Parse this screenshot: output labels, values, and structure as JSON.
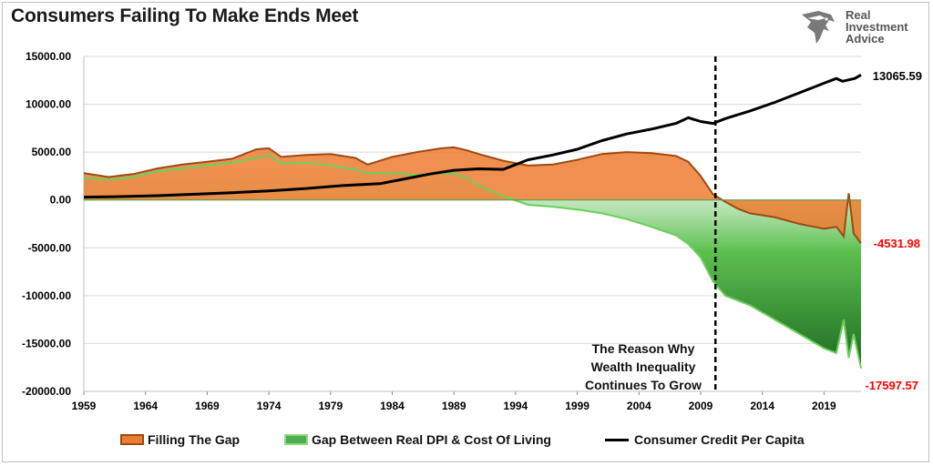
{
  "title": "Consumers Failing To Make Ends Meet",
  "logo": {
    "line1": "Real",
    "line2": "Investment",
    "line3": "Advice"
  },
  "annotation": [
    "The Reason Why",
    "Wealth Inequality",
    "Continues To Grow"
  ],
  "end_labels": {
    "credit": "13065.59",
    "filling": "-4531.98",
    "gap": "-17597.57"
  },
  "colors": {
    "filling": "#ed7d31",
    "filling_edge": "#9e4a12",
    "gap": "#4caf50",
    "gap_edge": "#6ccf5a",
    "credit": "#000000",
    "neg_label": "#ff0000"
  },
  "legend": [
    {
      "label": "Filling The Gap",
      "type": "area",
      "color": "#ed7d31"
    },
    {
      "label": "Gap Between Real DPI & Cost Of Living",
      "type": "area",
      "color": "#4caf50"
    },
    {
      "label": "Consumer Credit Per Capita",
      "type": "line",
      "color": "#000000"
    }
  ],
  "chart_data": {
    "type": "area",
    "x_ticks": [
      "1959",
      "1964",
      "1969",
      "1974",
      "1979",
      "1984",
      "1989",
      "1994",
      "1999",
      "2004",
      "2009",
      "2014",
      "2019"
    ],
    "y_ticks": [
      "15000.00",
      "10000.00",
      "5000.00",
      "0.00",
      "-5000.00",
      "-10000.00",
      "-15000.00",
      "-20000.00"
    ],
    "ylim": [
      -20000,
      15000
    ],
    "xlim": [
      1959,
      2022
    ],
    "grid": true,
    "legend_position": "bottom",
    "vertical_marker": 2010.2,
    "series": [
      {
        "name": "Filling The Gap",
        "type": "area",
        "points": [
          [
            1959,
            2800
          ],
          [
            1961,
            2400
          ],
          [
            1963,
            2700
          ],
          [
            1965,
            3300
          ],
          [
            1967,
            3700
          ],
          [
            1969,
            4000
          ],
          [
            1971,
            4300
          ],
          [
            1973,
            5300
          ],
          [
            1974,
            5400
          ],
          [
            1975,
            4500
          ],
          [
            1977,
            4700
          ],
          [
            1979,
            4800
          ],
          [
            1981,
            4400
          ],
          [
            1982,
            3700
          ],
          [
            1984,
            4500
          ],
          [
            1986,
            5000
          ],
          [
            1988,
            5400
          ],
          [
            1989,
            5500
          ],
          [
            1990,
            5200
          ],
          [
            1991,
            4800
          ],
          [
            1993,
            4100
          ],
          [
            1995,
            3600
          ],
          [
            1997,
            3700
          ],
          [
            1999,
            4200
          ],
          [
            2001,
            4800
          ],
          [
            2003,
            5000
          ],
          [
            2005,
            4900
          ],
          [
            2007,
            4600
          ],
          [
            2008,
            4000
          ],
          [
            2009,
            2500
          ],
          [
            2010,
            600
          ],
          [
            2011,
            -200
          ],
          [
            2012,
            -900
          ],
          [
            2013,
            -1400
          ],
          [
            2015,
            -1800
          ],
          [
            2017,
            -2500
          ],
          [
            2019,
            -3000
          ],
          [
            2020,
            -2800
          ],
          [
            2020.6,
            -3800
          ],
          [
            2021,
            700
          ],
          [
            2021.4,
            -3500
          ],
          [
            2022,
            -4531.98
          ]
        ]
      },
      {
        "name": "Gap Between Real DPI & Cost Of Living",
        "type": "area",
        "points": [
          [
            1959,
            2300
          ],
          [
            1961,
            2100
          ],
          [
            1963,
            2400
          ],
          [
            1965,
            3000
          ],
          [
            1967,
            3300
          ],
          [
            1969,
            3600
          ],
          [
            1971,
            3900
          ],
          [
            1973,
            4400
          ],
          [
            1974,
            4700
          ],
          [
            1975,
            3800
          ],
          [
            1977,
            3900
          ],
          [
            1979,
            3600
          ],
          [
            1981,
            3200
          ],
          [
            1982,
            2800
          ],
          [
            1984,
            2800
          ],
          [
            1986,
            2600
          ],
          [
            1988,
            2800
          ],
          [
            1989,
            2700
          ],
          [
            1990,
            2300
          ],
          [
            1991,
            1500
          ],
          [
            1993,
            400
          ],
          [
            1995,
            -500
          ],
          [
            1997,
            -700
          ],
          [
            1999,
            -1000
          ],
          [
            2001,
            -1400
          ],
          [
            2003,
            -2000
          ],
          [
            2005,
            -2800
          ],
          [
            2007,
            -3700
          ],
          [
            2008,
            -4600
          ],
          [
            2009,
            -6000
          ],
          [
            2010,
            -8500
          ],
          [
            2011,
            -10000
          ],
          [
            2013,
            -11000
          ],
          [
            2015,
            -12500
          ],
          [
            2017,
            -14000
          ],
          [
            2019,
            -15500
          ],
          [
            2020,
            -16000
          ],
          [
            2020.6,
            -12500
          ],
          [
            2021,
            -16500
          ],
          [
            2021.4,
            -14000
          ],
          [
            2022,
            -17597.57
          ]
        ]
      },
      {
        "name": "Consumer Credit Per Capita",
        "type": "line",
        "points": [
          [
            1959,
            300
          ],
          [
            1962,
            350
          ],
          [
            1965,
            450
          ],
          [
            1968,
            600
          ],
          [
            1971,
            750
          ],
          [
            1974,
            950
          ],
          [
            1977,
            1200
          ],
          [
            1980,
            1500
          ],
          [
            1983,
            1700
          ],
          [
            1985,
            2200
          ],
          [
            1987,
            2700
          ],
          [
            1989,
            3100
          ],
          [
            1991,
            3250
          ],
          [
            1993,
            3200
          ],
          [
            1995,
            4200
          ],
          [
            1997,
            4700
          ],
          [
            1999,
            5300
          ],
          [
            2001,
            6200
          ],
          [
            2003,
            6900
          ],
          [
            2005,
            7400
          ],
          [
            2007,
            8000
          ],
          [
            2008,
            8600
          ],
          [
            2009,
            8200
          ],
          [
            2010,
            8000
          ],
          [
            2011,
            8500
          ],
          [
            2013,
            9300
          ],
          [
            2015,
            10200
          ],
          [
            2017,
            11200
          ],
          [
            2019,
            12200
          ],
          [
            2020,
            12700
          ],
          [
            2020.5,
            12400
          ],
          [
            2021.5,
            12700
          ],
          [
            2022,
            13065.59
          ]
        ]
      }
    ]
  }
}
